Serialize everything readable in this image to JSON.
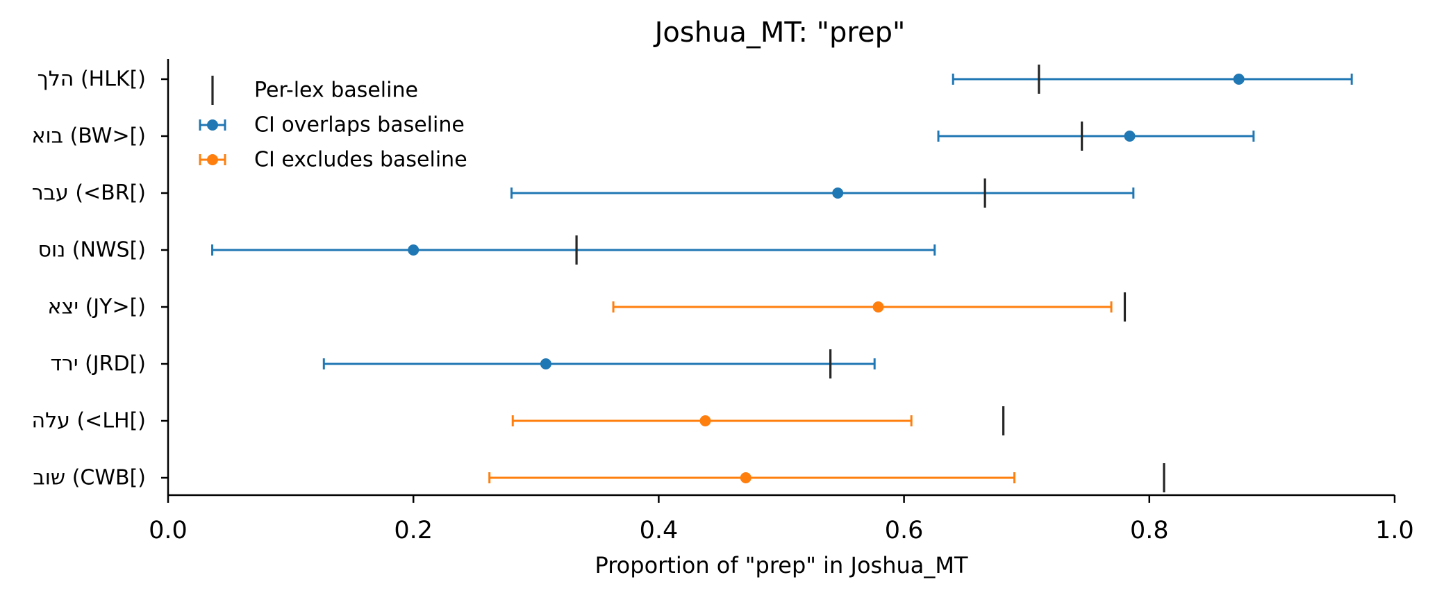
{
  "chart_data": {
    "type": "errorbar",
    "title": "Joshua_MT: \"prep\"",
    "xlabel": "Proportion of \"prep\" in Joshua_MT",
    "ylabel": "",
    "xlim": [
      0.0,
      1.0
    ],
    "xticks": [
      "0.0",
      "0.2",
      "0.4",
      "0.6",
      "0.8",
      "1.0"
    ],
    "grid": false,
    "legend_placement": "top-left",
    "legend": [
      {
        "key": "baseline",
        "label": "Per-lex baseline",
        "color": "#262626"
      },
      {
        "key": "overlap",
        "label": "CI overlaps baseline",
        "color": "#1f77b4"
      },
      {
        "key": "exclude",
        "label": "CI excludes baseline",
        "color": "#ff7f0e"
      }
    ],
    "categories": [
      {
        "label": "הלך (HLK[)",
        "value": 0.873,
        "ci": [
          0.64,
          0.965
        ],
        "baseline": 0.71,
        "status": "overlap"
      },
      {
        "label": "בוא (BW>[)",
        "value": 0.784,
        "ci": [
          0.628,
          0.885
        ],
        "baseline": 0.745,
        "status": "overlap"
      },
      {
        "label": "עבר (<BR[)",
        "value": 0.546,
        "ci": [
          0.28,
          0.787
        ],
        "baseline": 0.666,
        "status": "overlap"
      },
      {
        "label": "נוס (NWS[)",
        "value": 0.2,
        "ci": [
          0.036,
          0.625
        ],
        "baseline": 0.333,
        "status": "overlap"
      },
      {
        "label": "יצא (JY>[)",
        "value": 0.579,
        "ci": [
          0.363,
          0.769
        ],
        "baseline": 0.78,
        "status": "exclude"
      },
      {
        "label": "ירד (JRD[)",
        "value": 0.308,
        "ci": [
          0.127,
          0.576
        ],
        "baseline": 0.54,
        "status": "overlap"
      },
      {
        "label": "עלה (<LH[)",
        "value": 0.438,
        "ci": [
          0.281,
          0.606
        ],
        "baseline": 0.681,
        "status": "exclude"
      },
      {
        "label": "שוב (CWB[)",
        "value": 0.471,
        "ci": [
          0.262,
          0.69
        ],
        "baseline": 0.812,
        "status": "exclude"
      }
    ]
  }
}
